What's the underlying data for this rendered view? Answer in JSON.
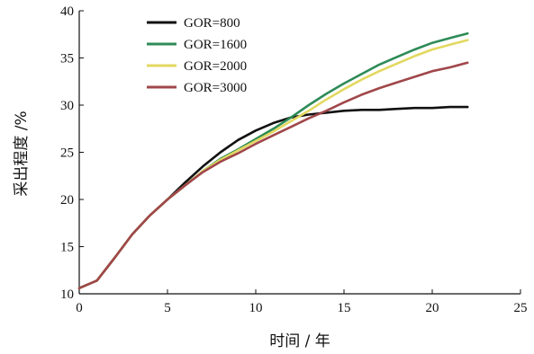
{
  "chart_data": {
    "type": "line",
    "title": "",
    "xlabel": "时间 / 年",
    "ylabel": "采出程度 /%",
    "xlim": [
      0,
      25
    ],
    "ylim": [
      10,
      40
    ],
    "xticks": [
      0,
      5,
      10,
      15,
      20,
      25
    ],
    "yticks": [
      10,
      15,
      20,
      25,
      30,
      35,
      40
    ],
    "grid": false,
    "legend_position": "top-left",
    "x": [
      0,
      1,
      2,
      3,
      4,
      5,
      6,
      7,
      8,
      9,
      10,
      11,
      12,
      13,
      14,
      15,
      16,
      17,
      18,
      19,
      20,
      21,
      22
    ],
    "series": [
      {
        "name": "GOR=800",
        "color": "#111111",
        "values": [
          10.6,
          11.4,
          13.8,
          16.3,
          18.3,
          20.0,
          21.8,
          23.5,
          25.0,
          26.3,
          27.3,
          28.1,
          28.7,
          29.0,
          29.2,
          29.4,
          29.5,
          29.5,
          29.6,
          29.7,
          29.7,
          29.8,
          29.8
        ]
      },
      {
        "name": "GOR=1600",
        "color": "#2e8b57",
        "values": [
          10.6,
          11.4,
          13.8,
          16.3,
          18.3,
          20.0,
          21.5,
          23.0,
          24.3,
          25.3,
          26.4,
          27.5,
          28.7,
          30.0,
          31.2,
          32.3,
          33.3,
          34.3,
          35.1,
          35.9,
          36.6,
          37.1,
          37.6
        ]
      },
      {
        "name": "GOR=2000",
        "color": "#e3d860",
        "values": [
          10.6,
          11.4,
          13.8,
          16.3,
          18.3,
          20.0,
          21.5,
          23.0,
          24.2,
          25.2,
          26.2,
          27.2,
          28.3,
          29.4,
          30.6,
          31.7,
          32.7,
          33.6,
          34.4,
          35.2,
          35.9,
          36.4,
          36.9
        ]
      },
      {
        "name": "GOR=3000",
        "color": "#a0474a",
        "values": [
          10.6,
          11.4,
          13.8,
          16.3,
          18.3,
          20.0,
          21.5,
          22.9,
          24.0,
          24.9,
          25.9,
          26.8,
          27.7,
          28.6,
          29.4,
          30.3,
          31.1,
          31.8,
          32.4,
          33.0,
          33.6,
          34.0,
          34.5
        ]
      }
    ]
  }
}
